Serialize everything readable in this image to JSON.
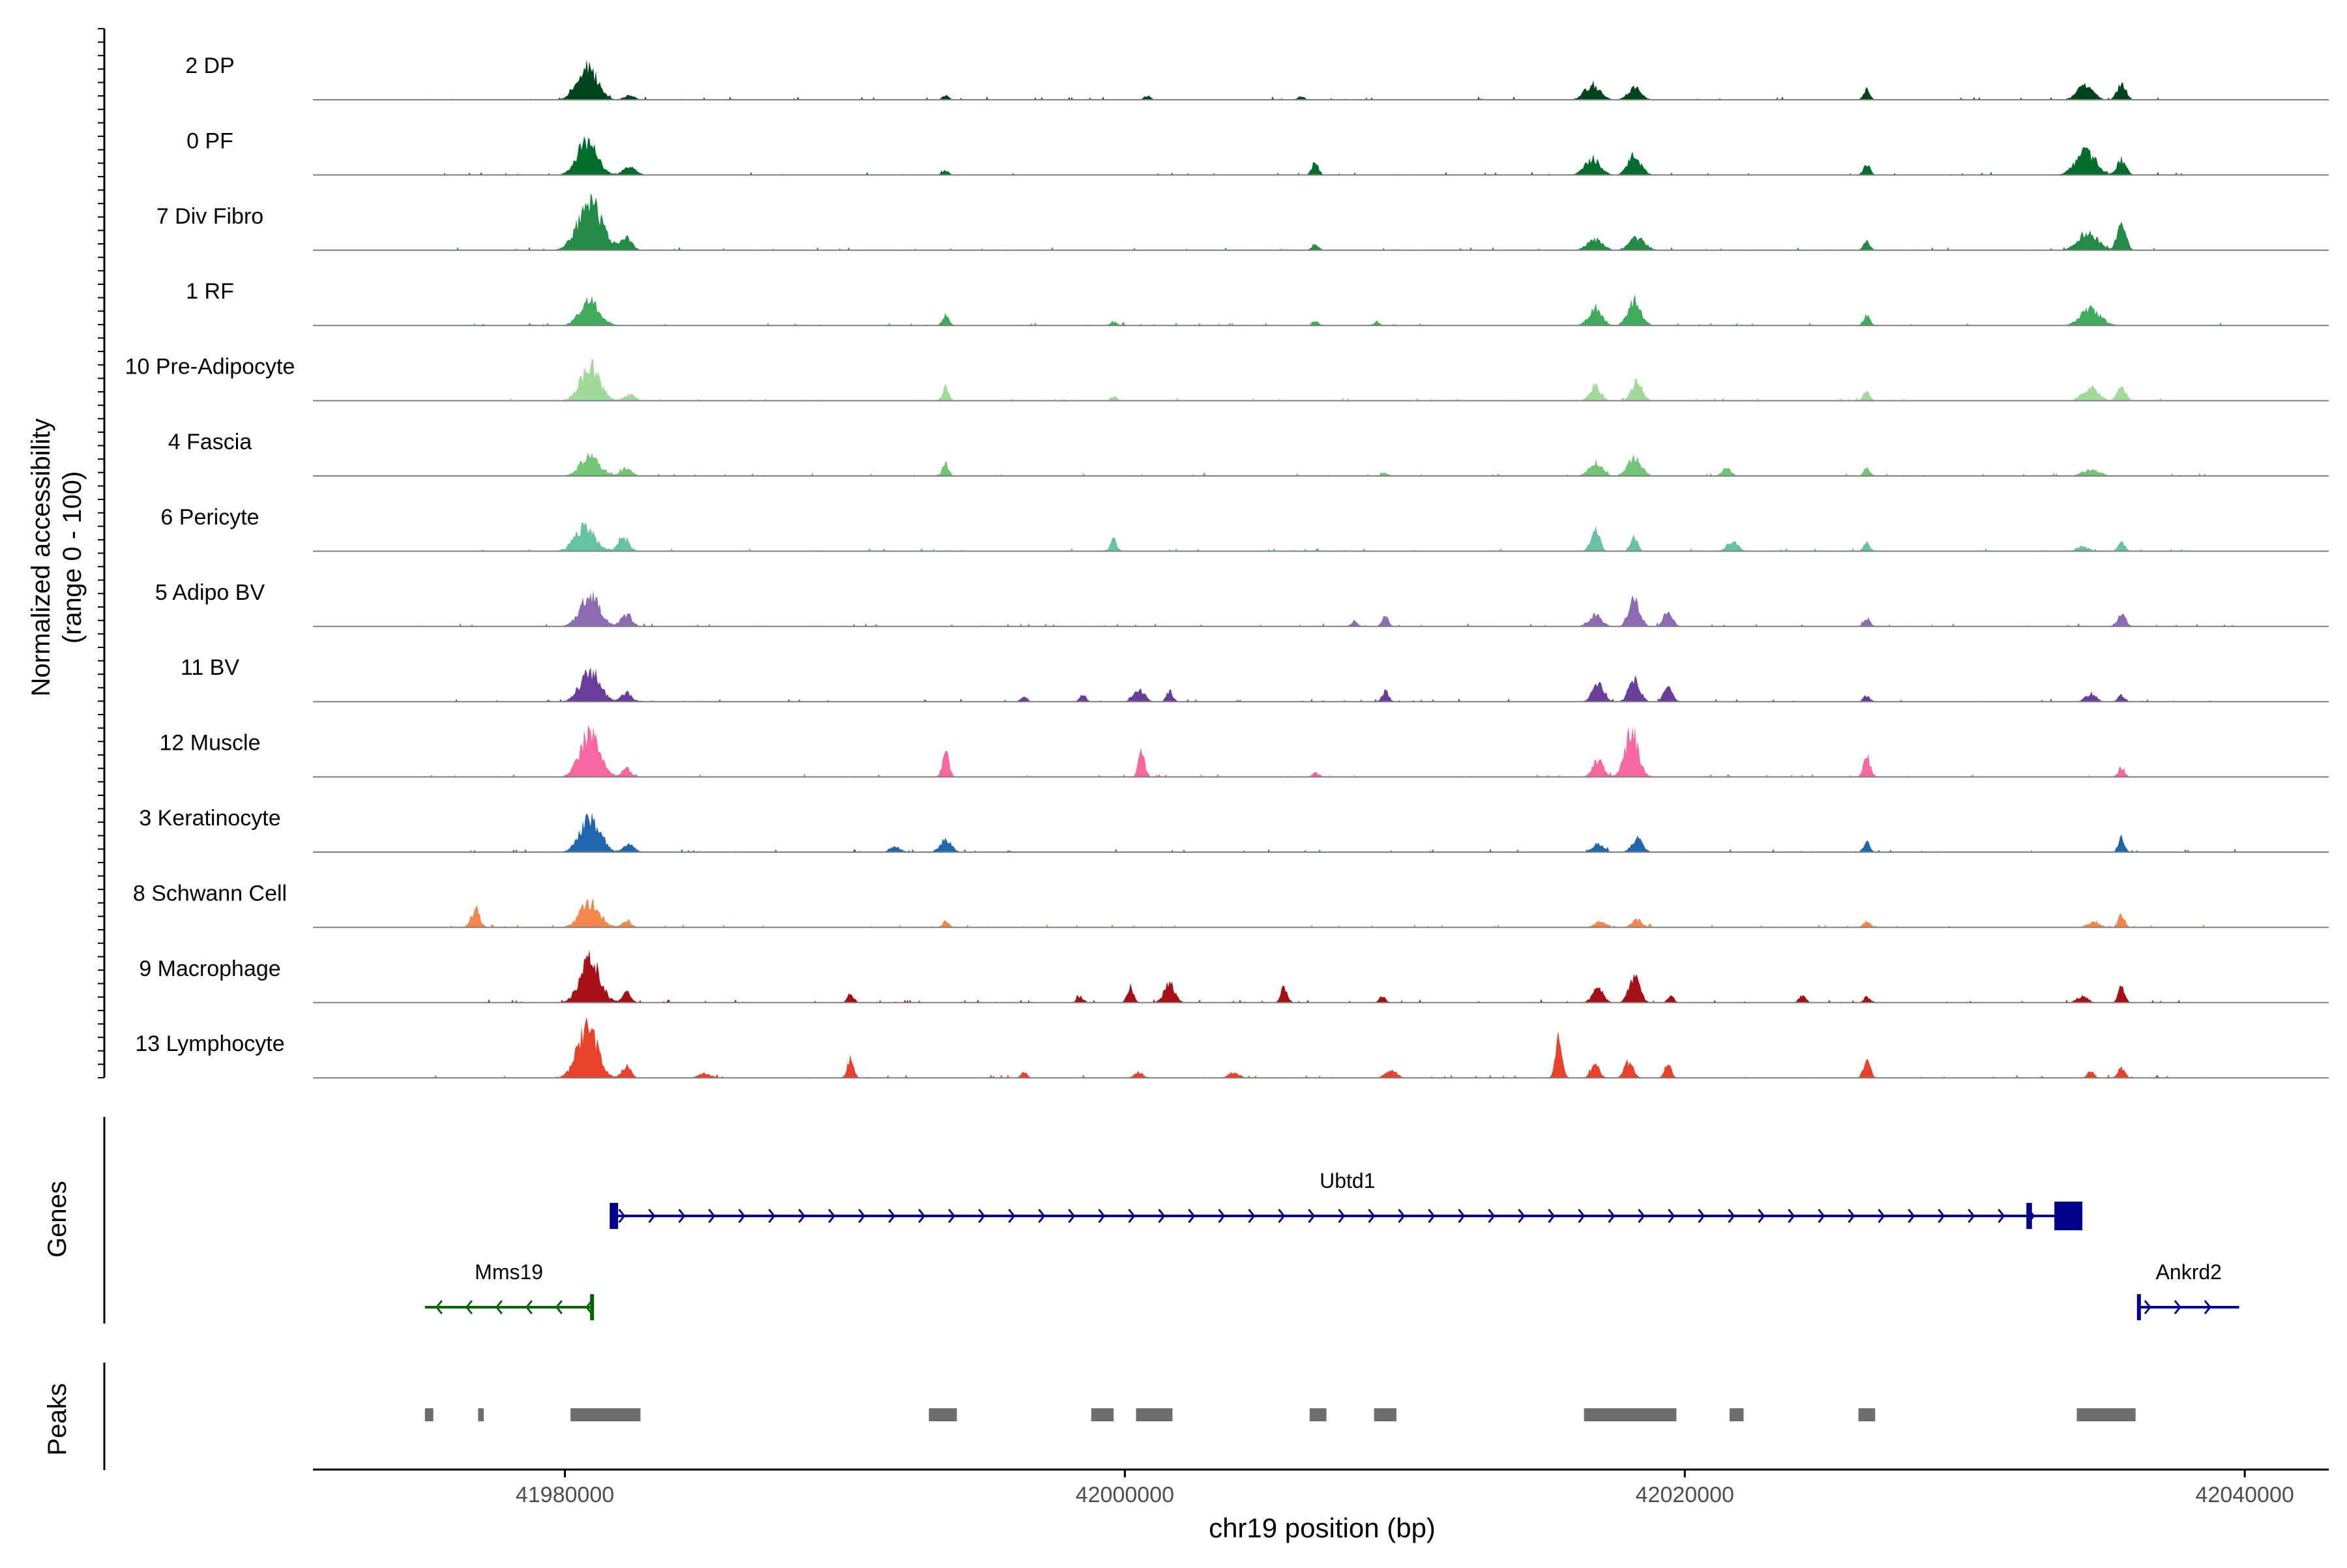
{
  "chart_data": {
    "type": "area",
    "title": "",
    "xlabel": "chr19 position (bp)",
    "ylabel_line1": "Normalized accessibility",
    "ylabel_line2": "(range 0 - 100)",
    "xlim": [
      41971000,
      42043000
    ],
    "x_ticks": [
      41980000,
      42000000,
      42020000,
      42040000
    ],
    "x_tick_labels": [
      "41980000",
      "42000000",
      "42020000",
      "42040000"
    ],
    "genes_label": "Genes",
    "peaks_label": "Peaks",
    "tracks": [
      {
        "name": "2 DP",
        "color": "#00441b",
        "peaks": [
          [
            41980800,
            0.62,
            900
          ],
          [
            41982300,
            0.08,
            500
          ],
          [
            41993600,
            0.08,
            300
          ],
          [
            42000800,
            0.07,
            300
          ],
          [
            42006300,
            0.06,
            300
          ],
          [
            42016700,
            0.28,
            700
          ],
          [
            42018200,
            0.22,
            600
          ],
          [
            42026500,
            0.18,
            300
          ],
          [
            42034300,
            0.28,
            700
          ],
          [
            42035600,
            0.3,
            400
          ]
        ]
      },
      {
        "name": "0 PF",
        "color": "#006d2c",
        "peaks": [
          [
            41980800,
            0.62,
            900
          ],
          [
            41982300,
            0.14,
            600
          ],
          [
            41993600,
            0.08,
            300
          ],
          [
            42006800,
            0.24,
            300
          ],
          [
            42016700,
            0.3,
            700
          ],
          [
            42018200,
            0.36,
            600
          ],
          [
            42026500,
            0.2,
            300
          ],
          [
            42034300,
            0.42,
            900
          ],
          [
            42035600,
            0.28,
            400
          ]
        ]
      },
      {
        "name": "7 Div Fibro",
        "color": "#238b45",
        "peaks": [
          [
            41980900,
            0.88,
            1100
          ],
          [
            41982200,
            0.22,
            500
          ],
          [
            42006800,
            0.12,
            300
          ],
          [
            42016800,
            0.2,
            700
          ],
          [
            42018300,
            0.24,
            700
          ],
          [
            42026500,
            0.18,
            300
          ],
          [
            42034400,
            0.32,
            900
          ],
          [
            42035600,
            0.5,
            400
          ]
        ]
      },
      {
        "name": "1 RF",
        "color": "#41ab5d",
        "peaks": [
          [
            41980900,
            0.44,
            900
          ],
          [
            41993600,
            0.2,
            300
          ],
          [
            41999600,
            0.07,
            300
          ],
          [
            42006800,
            0.08,
            300
          ],
          [
            42009000,
            0.06,
            300
          ],
          [
            42016800,
            0.32,
            600
          ],
          [
            42018200,
            0.46,
            600
          ],
          [
            42026500,
            0.18,
            300
          ],
          [
            42034500,
            0.3,
            900
          ]
        ]
      },
      {
        "name": "10 Pre-Adipocyte",
        "color": "#a1d99b",
        "peaks": [
          [
            41980900,
            0.64,
            900
          ],
          [
            41982300,
            0.12,
            500
          ],
          [
            41993600,
            0.26,
            300
          ],
          [
            41999600,
            0.08,
            300
          ],
          [
            42016800,
            0.28,
            500
          ],
          [
            42018300,
            0.34,
            500
          ],
          [
            42026500,
            0.18,
            300
          ],
          [
            42034500,
            0.26,
            700
          ],
          [
            42035600,
            0.24,
            400
          ]
        ]
      },
      {
        "name": "4 Fascia",
        "color": "#74c476",
        "peaks": [
          [
            41980900,
            0.36,
            900
          ],
          [
            41982200,
            0.14,
            500
          ],
          [
            41993600,
            0.22,
            300
          ],
          [
            42009300,
            0.06,
            300
          ],
          [
            42016800,
            0.24,
            600
          ],
          [
            42018200,
            0.36,
            600
          ],
          [
            42021500,
            0.14,
            400
          ],
          [
            42026500,
            0.14,
            300
          ],
          [
            42034500,
            0.12,
            800
          ]
        ]
      },
      {
        "name": "6 Pericyte",
        "color": "#66c2a4",
        "peaks": [
          [
            41980700,
            0.44,
            900
          ],
          [
            41982100,
            0.26,
            500
          ],
          [
            41999600,
            0.22,
            300
          ],
          [
            42016800,
            0.4,
            400
          ],
          [
            42018200,
            0.3,
            300
          ],
          [
            42021700,
            0.18,
            500
          ],
          [
            42026500,
            0.16,
            300
          ],
          [
            42034200,
            0.1,
            500
          ],
          [
            42035600,
            0.18,
            300
          ]
        ]
      },
      {
        "name": "5 Adipo BV",
        "color": "#8c6bb1",
        "peaks": [
          [
            41980900,
            0.56,
            900
          ],
          [
            41982200,
            0.22,
            500
          ],
          [
            42008200,
            0.1,
            300
          ],
          [
            42009300,
            0.18,
            300
          ],
          [
            42016800,
            0.2,
            600
          ],
          [
            42018200,
            0.5,
            500
          ],
          [
            42019400,
            0.3,
            400
          ],
          [
            42026500,
            0.16,
            300
          ],
          [
            42035600,
            0.22,
            400
          ]
        ]
      },
      {
        "name": "11 BV",
        "color": "#6a3d9a",
        "peaks": [
          [
            41980900,
            0.56,
            900
          ],
          [
            41982200,
            0.16,
            500
          ],
          [
            41996400,
            0.1,
            300
          ],
          [
            41998500,
            0.12,
            300
          ],
          [
            42000500,
            0.24,
            500
          ],
          [
            42001600,
            0.2,
            300
          ],
          [
            42009300,
            0.2,
            300
          ],
          [
            42016900,
            0.34,
            500
          ],
          [
            42018200,
            0.44,
            500
          ],
          [
            42019400,
            0.26,
            400
          ],
          [
            42026500,
            0.12,
            300
          ],
          [
            42034500,
            0.14,
            500
          ],
          [
            42035600,
            0.12,
            300
          ]
        ]
      },
      {
        "name": "12 Muscle",
        "color": "#f768a1",
        "peaks": [
          [
            41980900,
            0.82,
            900
          ],
          [
            41982200,
            0.16,
            400
          ],
          [
            41993600,
            0.44,
            300
          ],
          [
            42000600,
            0.44,
            300
          ],
          [
            42006800,
            0.08,
            300
          ],
          [
            42016900,
            0.3,
            500
          ],
          [
            42018100,
            0.86,
            600
          ],
          [
            42026500,
            0.38,
            300
          ],
          [
            42035600,
            0.18,
            300
          ]
        ]
      },
      {
        "name": "3 Keratinocyte",
        "color": "#2166ac",
        "peaks": [
          [
            41980900,
            0.62,
            900
          ],
          [
            41982300,
            0.14,
            500
          ],
          [
            41991800,
            0.1,
            500
          ],
          [
            41993600,
            0.24,
            500
          ],
          [
            42016900,
            0.16,
            500
          ],
          [
            42018300,
            0.24,
            500
          ],
          [
            42026500,
            0.18,
            300
          ],
          [
            42035600,
            0.26,
            300
          ]
        ]
      },
      {
        "name": "8 Schwann Cell",
        "color": "#f4874b",
        "peaks": [
          [
            41976800,
            0.34,
            400
          ],
          [
            41980900,
            0.46,
            900
          ],
          [
            41982200,
            0.14,
            400
          ],
          [
            41993600,
            0.12,
            300
          ],
          [
            42017000,
            0.12,
            500
          ],
          [
            42018300,
            0.14,
            500
          ],
          [
            42026500,
            0.12,
            300
          ],
          [
            42034600,
            0.12,
            500
          ],
          [
            42035600,
            0.24,
            300
          ]
        ]
      },
      {
        "name": "9 Macrophage",
        "color": "#a50f15",
        "peaks": [
          [
            41980900,
            0.78,
            900
          ],
          [
            41982200,
            0.18,
            400
          ],
          [
            41990200,
            0.16,
            300
          ],
          [
            41998400,
            0.12,
            300
          ],
          [
            42000200,
            0.3,
            300
          ],
          [
            42001600,
            0.34,
            500
          ],
          [
            42005700,
            0.28,
            300
          ],
          [
            42009200,
            0.12,
            300
          ],
          [
            42016900,
            0.26,
            500
          ],
          [
            42018200,
            0.46,
            500
          ],
          [
            42019500,
            0.12,
            300
          ],
          [
            42024200,
            0.14,
            300
          ],
          [
            42026500,
            0.1,
            300
          ],
          [
            42034200,
            0.12,
            500
          ],
          [
            42035600,
            0.3,
            300
          ]
        ]
      },
      {
        "name": "13 Lymphocyte",
        "color": "#e8412c",
        "peaks": [
          [
            41980800,
            0.94,
            900
          ],
          [
            41982200,
            0.22,
            400
          ],
          [
            41985000,
            0.08,
            600
          ],
          [
            41990200,
            0.34,
            300
          ],
          [
            41996400,
            0.1,
            300
          ],
          [
            42000500,
            0.1,
            400
          ],
          [
            42003900,
            0.1,
            500
          ],
          [
            42009500,
            0.16,
            500
          ],
          [
            42015500,
            0.8,
            300
          ],
          [
            42016800,
            0.24,
            400
          ],
          [
            42018000,
            0.3,
            400
          ],
          [
            42019400,
            0.26,
            300
          ],
          [
            42026500,
            0.38,
            300
          ],
          [
            42034500,
            0.12,
            300
          ],
          [
            42035600,
            0.2,
            300
          ]
        ]
      }
    ],
    "genes": [
      {
        "name": "Ubtd1",
        "strand": "+",
        "start": 41981700,
        "end": 42034200,
        "color": "#00008b",
        "exons": [
          [
            41981600,
            41981900
          ],
          [
            42032200,
            42032400
          ],
          [
            42033200,
            42034200
          ]
        ]
      },
      {
        "name": "Mms19",
        "strand": "-",
        "start": 41975000,
        "end": 41981000,
        "color": "#006400",
        "exons": [
          [
            41980900,
            41981000
          ]
        ]
      },
      {
        "name": "Ankrd2",
        "strand": "+",
        "start": 42036200,
        "end": 42039800,
        "color": "#00008b",
        "exons": [
          [
            42036150,
            42036250
          ]
        ]
      }
    ],
    "peaks": [
      [
        41975000,
        41975300
      ],
      [
        41976900,
        41977100
      ],
      [
        41980200,
        41982700
      ],
      [
        41993000,
        41994000
      ],
      [
        41998800,
        41999600
      ],
      [
        42000400,
        42001700
      ],
      [
        42006600,
        42007200
      ],
      [
        42008900,
        42009700
      ],
      [
        42016400,
        42019700
      ],
      [
        42021600,
        42022100
      ],
      [
        42026200,
        42026800
      ],
      [
        42034000,
        42036100
      ]
    ]
  }
}
